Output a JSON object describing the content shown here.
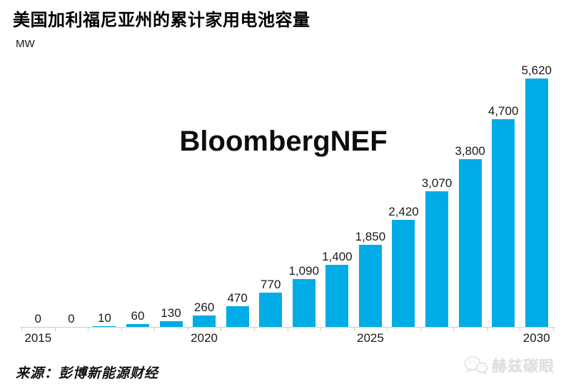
{
  "header": {
    "title": "美国加利福尼亚州的累计家用电池容量",
    "unit_label": "MW"
  },
  "watermarks": {
    "center_text": "BloombergNEF",
    "brand": {
      "icon": "wechat-icon",
      "text": "赫兹碳眼"
    }
  },
  "footer": {
    "source": "来源：彭博新能源财经"
  },
  "colors": {
    "bar": "#00ACE6",
    "axis": "#cccccc",
    "text": "#1a1a1a",
    "brand_watermark": "#dedede"
  },
  "chart_data": {
    "type": "bar",
    "title": "美国加利福尼亚州的累计家用电池容量",
    "xlabel": "",
    "ylabel": "MW",
    "categories": [
      "2015",
      "2016",
      "2017",
      "2018",
      "2019",
      "2020",
      "2021",
      "2022",
      "2023",
      "2024",
      "2025",
      "2026",
      "2027",
      "2028",
      "2029",
      "2030"
    ],
    "values": [
      0,
      0,
      10,
      60,
      130,
      260,
      470,
      770,
      1090,
      1400,
      1850,
      2420,
      3070,
      3800,
      4700,
      5620
    ],
    "bar_labels": [
      "0",
      "0",
      "10",
      "60",
      "130",
      "260",
      "470",
      "770",
      "1,090",
      "1,400",
      "1,850",
      "2,420",
      "3,070",
      "3,800",
      "4,700",
      "5,620"
    ],
    "x_tick_labels": [
      "2015",
      "2020",
      "2025",
      "2030"
    ],
    "ylim": [
      0,
      5620
    ],
    "grid": false,
    "legend": "none",
    "bar_color": "#00ACE6"
  }
}
